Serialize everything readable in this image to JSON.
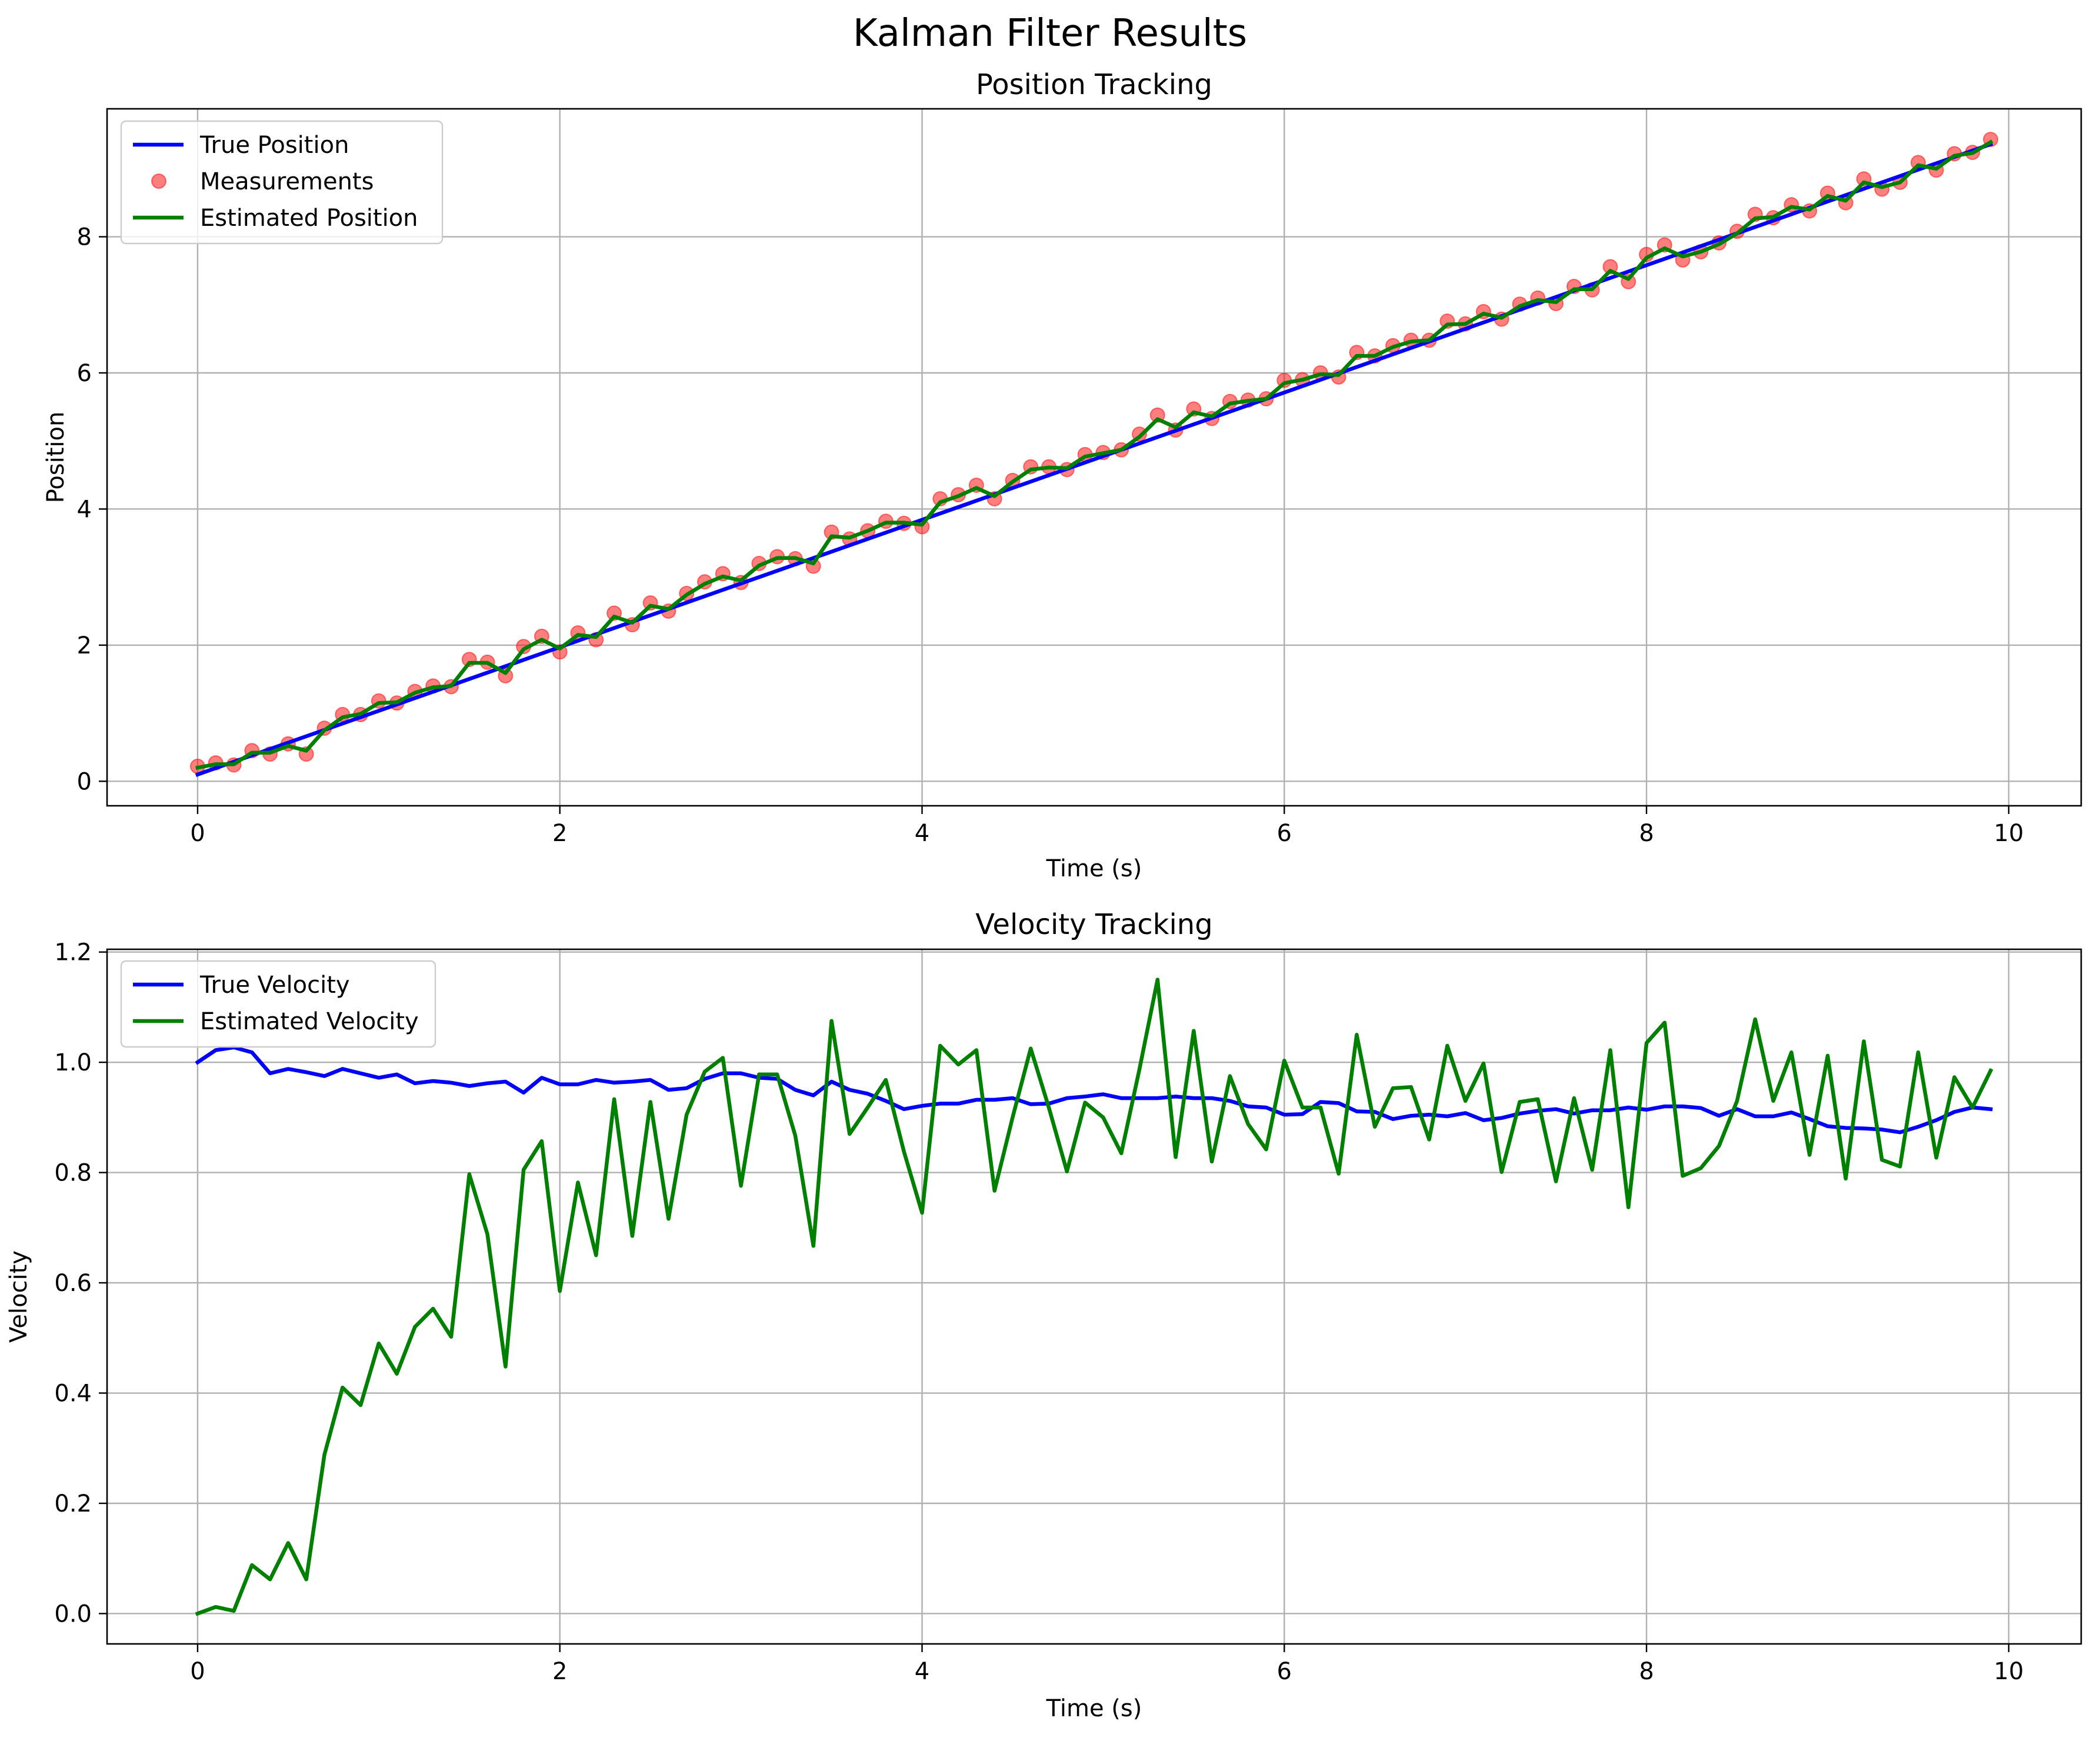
{
  "figure": {
    "title": "Kalman Filter Results"
  },
  "colors": {
    "true_series": "#0000ff",
    "estimate_series": "#008000",
    "measurement_points": "#ff0000",
    "grid": "#b0b0b0",
    "axes": "#000000"
  },
  "chart_data": [
    {
      "type": "line",
      "title": "Position Tracking",
      "xlabel": "Time (s)",
      "ylabel": "Position",
      "xlim": [
        -0.5,
        10.4
      ],
      "ylim": [
        -0.36,
        9.88
      ],
      "xticks": [
        0,
        2,
        4,
        6,
        8,
        10
      ],
      "yticks": [
        0,
        2,
        4,
        6,
        8
      ],
      "grid": true,
      "legend": "top-left",
      "series": [
        {
          "name": "True Position",
          "kind": "line",
          "x": [
            0,
            9.9
          ],
          "y": [
            0.1,
            9.36
          ]
        },
        {
          "name": "Measurements",
          "kind": "scatter",
          "x": [
            0.0,
            0.1,
            0.2,
            0.3,
            0.4,
            0.5,
            0.6,
            0.7,
            0.8,
            0.9,
            1.0,
            1.1,
            1.2,
            1.3,
            1.4,
            1.5,
            1.6,
            1.7,
            1.8,
            1.9,
            2.0,
            2.1,
            2.2,
            2.3,
            2.4,
            2.5,
            2.6,
            2.7,
            2.8,
            2.9,
            3.0,
            3.1,
            3.2,
            3.3,
            3.4,
            3.5,
            3.6,
            3.7,
            3.8,
            3.9,
            4.0,
            4.1,
            4.2,
            4.3,
            4.4,
            4.5,
            4.6,
            4.7,
            4.8,
            4.9,
            5.0,
            5.1,
            5.2,
            5.3,
            5.4,
            5.5,
            5.6,
            5.7,
            5.8,
            5.9,
            6.0,
            6.1,
            6.2,
            6.3,
            6.4,
            6.5,
            6.6,
            6.7,
            6.8,
            6.9,
            7.0,
            7.1,
            7.2,
            7.3,
            7.4,
            7.5,
            7.6,
            7.7,
            7.8,
            7.9,
            8.0,
            8.1,
            8.2,
            8.3,
            8.4,
            8.5,
            8.6,
            8.7,
            8.8,
            8.9,
            9.0,
            9.1,
            9.2,
            9.3,
            9.4,
            9.5,
            9.6,
            9.7,
            9.8,
            9.9
          ],
          "y": [
            0.22,
            0.27,
            0.24,
            0.45,
            0.4,
            0.55,
            0.4,
            0.78,
            0.98,
            0.98,
            1.18,
            1.15,
            1.32,
            1.4,
            1.39,
            1.79,
            1.75,
            1.55,
            1.98,
            2.13,
            1.9,
            2.18,
            2.08,
            2.47,
            2.3,
            2.62,
            2.5,
            2.76,
            2.93,
            3.05,
            2.92,
            3.2,
            3.3,
            3.27,
            3.16,
            3.66,
            3.56,
            3.68,
            3.82,
            3.79,
            3.74,
            4.15,
            4.21,
            4.35,
            4.15,
            4.42,
            4.62,
            4.62,
            4.58,
            4.8,
            4.83,
            4.87,
            5.1,
            5.38,
            5.16,
            5.47,
            5.33,
            5.58,
            5.6,
            5.62,
            5.89,
            5.9,
            6.0,
            5.94,
            6.3,
            6.25,
            6.4,
            6.48,
            6.48,
            6.76,
            6.72,
            6.9,
            6.79,
            7.01,
            7.1,
            7.02,
            7.27,
            7.22,
            7.56,
            7.34,
            7.74,
            7.88,
            7.66,
            7.78,
            7.91,
            8.08,
            8.33,
            8.28,
            8.47,
            8.38,
            8.64,
            8.5,
            8.85,
            8.7,
            8.8,
            9.09,
            8.98,
            9.22,
            9.24,
            9.43
          ]
        },
        {
          "name": "Estimated Position",
          "kind": "line",
          "x": [
            0.0,
            0.1,
            0.2,
            0.3,
            0.4,
            0.5,
            0.6,
            0.7,
            0.8,
            0.9,
            1.0,
            1.1,
            1.2,
            1.3,
            1.4,
            1.5,
            1.6,
            1.7,
            1.8,
            1.9,
            2.0,
            2.1,
            2.2,
            2.3,
            2.4,
            2.5,
            2.6,
            2.7,
            2.8,
            2.9,
            3.0,
            3.1,
            3.2,
            3.3,
            3.4,
            3.5,
            3.6,
            3.7,
            3.8,
            3.9,
            4.0,
            4.1,
            4.2,
            4.3,
            4.4,
            4.5,
            4.6,
            4.7,
            4.8,
            4.9,
            5.0,
            5.1,
            5.2,
            5.3,
            5.4,
            5.5,
            5.6,
            5.7,
            5.8,
            5.9,
            6.0,
            6.1,
            6.2,
            6.3,
            6.4,
            6.5,
            6.6,
            6.7,
            6.8,
            6.9,
            7.0,
            7.1,
            7.2,
            7.3,
            7.4,
            7.5,
            7.6,
            7.7,
            7.8,
            7.9,
            8.0,
            8.1,
            8.2,
            8.3,
            8.4,
            8.5,
            8.6,
            8.7,
            8.8,
            8.9,
            9.0,
            9.1,
            9.2,
            9.3,
            9.4,
            9.5,
            9.6,
            9.7,
            9.8,
            9.9
          ],
          "y": [
            0.2,
            0.25,
            0.25,
            0.42,
            0.42,
            0.52,
            0.45,
            0.75,
            0.94,
            0.99,
            1.15,
            1.16,
            1.3,
            1.38,
            1.4,
            1.74,
            1.74,
            1.59,
            1.94,
            2.08,
            1.95,
            2.15,
            2.12,
            2.42,
            2.33,
            2.58,
            2.53,
            2.74,
            2.9,
            3.01,
            2.95,
            3.17,
            3.28,
            3.28,
            3.2,
            3.6,
            3.58,
            3.68,
            3.8,
            3.8,
            3.77,
            4.1,
            4.19,
            4.31,
            4.19,
            4.4,
            4.58,
            4.61,
            4.6,
            4.77,
            4.82,
            4.87,
            5.06,
            5.32,
            5.2,
            5.42,
            5.36,
            5.55,
            5.59,
            5.62,
            5.85,
            5.9,
            5.98,
            5.97,
            6.25,
            6.25,
            6.38,
            6.46,
            6.48,
            6.71,
            6.72,
            6.87,
            6.81,
            6.98,
            7.07,
            7.04,
            7.23,
            7.23,
            7.5,
            7.38,
            7.69,
            7.83,
            7.71,
            7.78,
            7.89,
            8.05,
            8.27,
            8.29,
            8.44,
            8.4,
            8.6,
            8.53,
            8.8,
            8.73,
            8.8,
            9.05,
            9.0,
            9.19,
            9.23,
            9.39
          ]
        }
      ]
    },
    {
      "type": "line",
      "title": "Velocity Tracking",
      "xlabel": "Time (s)",
      "ylabel": "Velocity",
      "xlim": [
        -0.5,
        10.4
      ],
      "ylim": [
        -0.055,
        1.205
      ],
      "xticks": [
        0,
        2,
        4,
        6,
        8,
        10
      ],
      "yticks": [
        0.0,
        0.2,
        0.4,
        0.6,
        0.8,
        1.0,
        1.2
      ],
      "grid": true,
      "legend": "top-left",
      "series": [
        {
          "name": "True Velocity",
          "kind": "line",
          "x": [
            0.0,
            0.1,
            0.2,
            0.3,
            0.4,
            0.5,
            0.6,
            0.7,
            0.8,
            0.9,
            1.0,
            1.1,
            1.2,
            1.3,
            1.4,
            1.5,
            1.6,
            1.7,
            1.8,
            1.9,
            2.0,
            2.1,
            2.2,
            2.3,
            2.4,
            2.5,
            2.6,
            2.7,
            2.8,
            2.9,
            3.0,
            3.1,
            3.2,
            3.3,
            3.4,
            3.5,
            3.6,
            3.7,
            3.8,
            3.9,
            4.0,
            4.1,
            4.2,
            4.3,
            4.4,
            4.5,
            4.6,
            4.7,
            4.8,
            4.9,
            5.0,
            5.1,
            5.2,
            5.3,
            5.4,
            5.5,
            5.6,
            5.7,
            5.8,
            5.9,
            6.0,
            6.1,
            6.2,
            6.3,
            6.4,
            6.5,
            6.6,
            6.7,
            6.8,
            6.9,
            7.0,
            7.1,
            7.2,
            7.3,
            7.4,
            7.5,
            7.6,
            7.7,
            7.8,
            7.9,
            8.0,
            8.1,
            8.2,
            8.3,
            8.4,
            8.5,
            8.6,
            8.7,
            8.8,
            8.9,
            9.0,
            9.1,
            9.2,
            9.3,
            9.4,
            9.5,
            9.6,
            9.7,
            9.8,
            9.9
          ],
          "y": [
            1.0,
            1.022,
            1.027,
            1.018,
            0.98,
            0.988,
            0.982,
            0.975,
            0.988,
            0.98,
            0.972,
            0.978,
            0.962,
            0.966,
            0.963,
            0.957,
            0.962,
            0.965,
            0.945,
            0.972,
            0.96,
            0.96,
            0.968,
            0.963,
            0.965,
            0.968,
            0.95,
            0.953,
            0.97,
            0.98,
            0.98,
            0.972,
            0.97,
            0.95,
            0.94,
            0.965,
            0.95,
            0.943,
            0.93,
            0.915,
            0.921,
            0.925,
            0.925,
            0.932,
            0.932,
            0.935,
            0.924,
            0.925,
            0.935,
            0.938,
            0.942,
            0.935,
            0.935,
            0.935,
            0.938,
            0.935,
            0.935,
            0.93,
            0.92,
            0.918,
            0.905,
            0.906,
            0.928,
            0.926,
            0.911,
            0.91,
            0.897,
            0.903,
            0.905,
            0.902,
            0.908,
            0.895,
            0.899,
            0.907,
            0.912,
            0.915,
            0.907,
            0.913,
            0.913,
            0.918,
            0.914,
            0.92,
            0.92,
            0.917,
            0.903,
            0.915,
            0.902,
            0.902,
            0.909,
            0.897,
            0.884,
            0.881,
            0.88,
            0.878,
            0.873,
            0.883,
            0.895,
            0.91,
            0.918,
            0.915
          ]
        },
        {
          "name": "Estimated Velocity",
          "kind": "line",
          "x": [
            0.0,
            0.1,
            0.2,
            0.3,
            0.4,
            0.5,
            0.6,
            0.7,
            0.8,
            0.9,
            1.0,
            1.1,
            1.2,
            1.3,
            1.4,
            1.5,
            1.6,
            1.7,
            1.8,
            1.9,
            2.0,
            2.1,
            2.2,
            2.3,
            2.4,
            2.5,
            2.6,
            2.7,
            2.8,
            2.9,
            3.0,
            3.1,
            3.2,
            3.3,
            3.4,
            3.5,
            3.6,
            3.7,
            3.8,
            3.9,
            4.0,
            4.1,
            4.2,
            4.3,
            4.4,
            4.5,
            4.6,
            4.7,
            4.8,
            4.9,
            5.0,
            5.1,
            5.2,
            5.3,
            5.4,
            5.5,
            5.6,
            5.7,
            5.8,
            5.9,
            6.0,
            6.1,
            6.2,
            6.3,
            6.4,
            6.5,
            6.6,
            6.7,
            6.8,
            6.9,
            7.0,
            7.1,
            7.2,
            7.3,
            7.4,
            7.5,
            7.6,
            7.7,
            7.8,
            7.9,
            8.0,
            8.1,
            8.2,
            8.3,
            8.4,
            8.5,
            8.6,
            8.7,
            8.8,
            8.9,
            9.0,
            9.1,
            9.2,
            9.3,
            9.4,
            9.5,
            9.6,
            9.7,
            9.8,
            9.9
          ],
          "y": [
            0.0,
            0.012,
            0.005,
            0.088,
            0.062,
            0.128,
            0.062,
            0.288,
            0.41,
            0.378,
            0.49,
            0.435,
            0.52,
            0.553,
            0.502,
            0.797,
            0.688,
            0.448,
            0.805,
            0.857,
            0.585,
            0.782,
            0.65,
            0.933,
            0.685,
            0.928,
            0.716,
            0.905,
            0.983,
            1.008,
            0.776,
            0.978,
            0.978,
            0.867,
            0.667,
            1.075,
            0.87,
            0.918,
            0.968,
            0.838,
            0.727,
            1.03,
            0.996,
            1.022,
            0.767,
            0.9,
            1.025,
            0.918,
            0.802,
            0.927,
            0.9,
            0.835,
            0.987,
            1.15,
            0.828,
            1.057,
            0.82,
            0.975,
            0.888,
            0.842,
            1.003,
            0.918,
            0.918,
            0.798,
            1.05,
            0.883,
            0.953,
            0.955,
            0.86,
            1.03,
            0.93,
            0.998,
            0.801,
            0.928,
            0.933,
            0.784,
            0.935,
            0.805,
            1.022,
            0.737,
            1.035,
            1.072,
            0.794,
            0.808,
            0.848,
            0.93,
            1.078,
            0.93,
            1.018,
            0.832,
            1.012,
            0.789,
            1.038,
            0.823,
            0.811,
            1.018,
            0.827,
            0.973,
            0.918,
            0.985
          ]
        }
      ]
    }
  ]
}
